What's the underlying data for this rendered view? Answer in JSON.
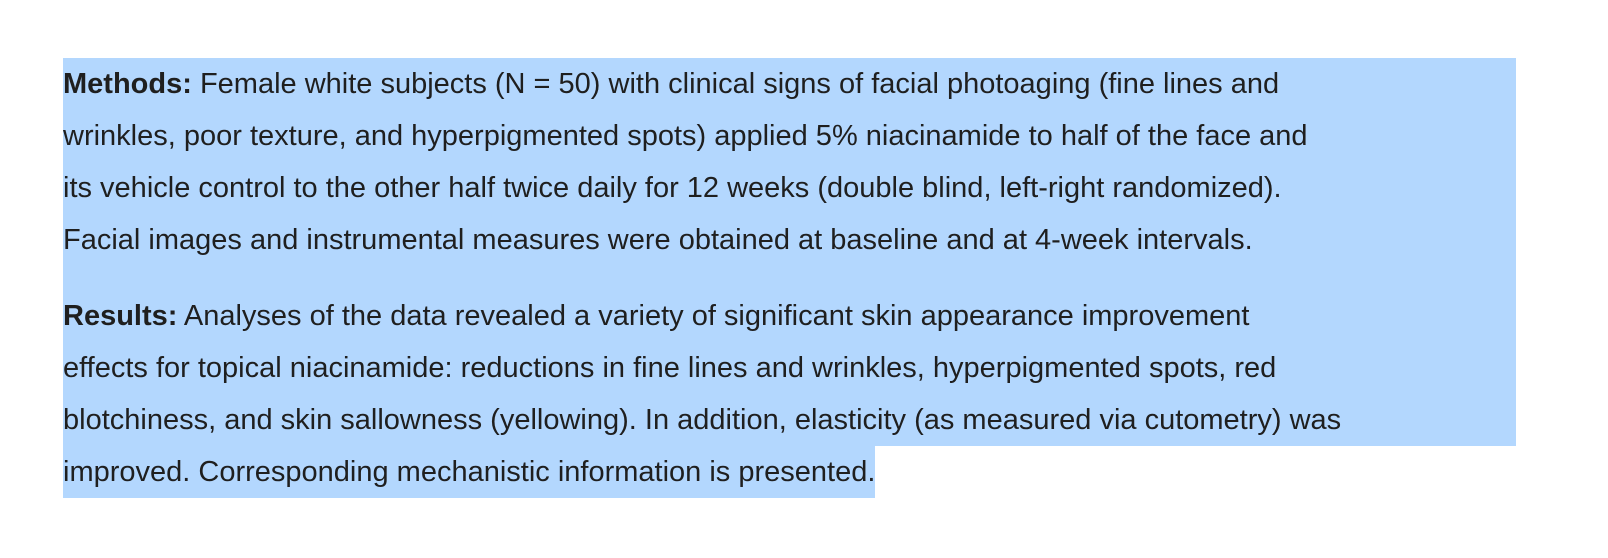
{
  "paragraphs": [
    {
      "label": "Methods:",
      "lines": [
        "Female white subjects (N = 50) with clinical signs of facial photoaging (fine lines and",
        "wrinkles, poor texture, and hyperpigmented spots) applied 5% niacinamide to half of the face and",
        "its vehicle control to the other half twice daily for 12 weeks (double blind, left-right randomized).",
        "Facial images and instrumental measures were obtained at baseline and at 4-week intervals."
      ]
    },
    {
      "label": "Results:",
      "lines": [
        "Analyses of the data revealed a variety of significant skin appearance improvement",
        "effects for topical niacinamide: reductions in fine lines and wrinkles, hyperpigmented spots, red",
        "blotchiness, and skin sallowness (yellowing). In addition, elasticity (as measured via cutometry) was",
        "improved. Corresponding mechanistic information is presented."
      ]
    }
  ]
}
